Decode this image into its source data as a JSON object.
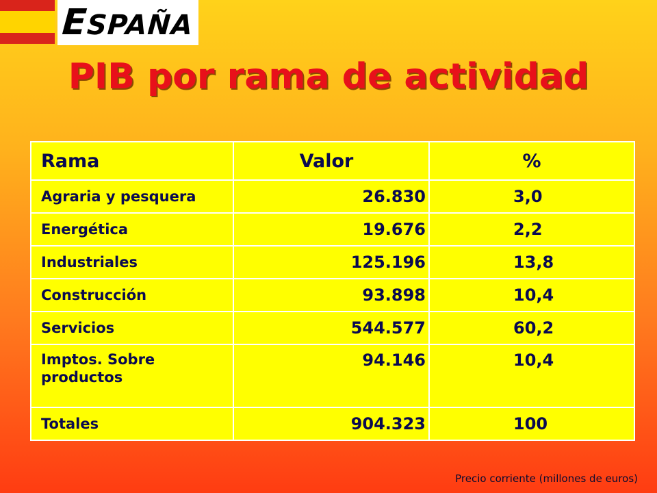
{
  "logo": {
    "first_letter": "E",
    "rest": "SPAÑA"
  },
  "title": "PIB por rama de actividad",
  "table": {
    "headers": [
      "Rama",
      "Valor",
      "%"
    ],
    "rows": [
      {
        "rama": "Agraria y pesquera",
        "valor": "26.830",
        "pct": "3,0"
      },
      {
        "rama": "Energética",
        "valor": "19.676",
        "pct": "2,2"
      },
      {
        "rama": "Industriales",
        "valor": "125.196",
        "pct": "13,8"
      },
      {
        "rama": "Construcción",
        "valor": "93.898",
        "pct": "10,4"
      },
      {
        "rama": "Servicios",
        "valor": "544.577",
        "pct": "60,2"
      },
      {
        "rama": "Imptos. Sobre productos",
        "valor": "94.146",
        "pct": "10,4"
      },
      {
        "rama": "Totales",
        "valor": "904.323",
        "pct": "100"
      }
    ]
  },
  "footnote": "Precio corriente (millones de euros)",
  "colors": {
    "title": "#e8101a",
    "table_bg": "#ffff00",
    "text": "#0a0a50"
  }
}
